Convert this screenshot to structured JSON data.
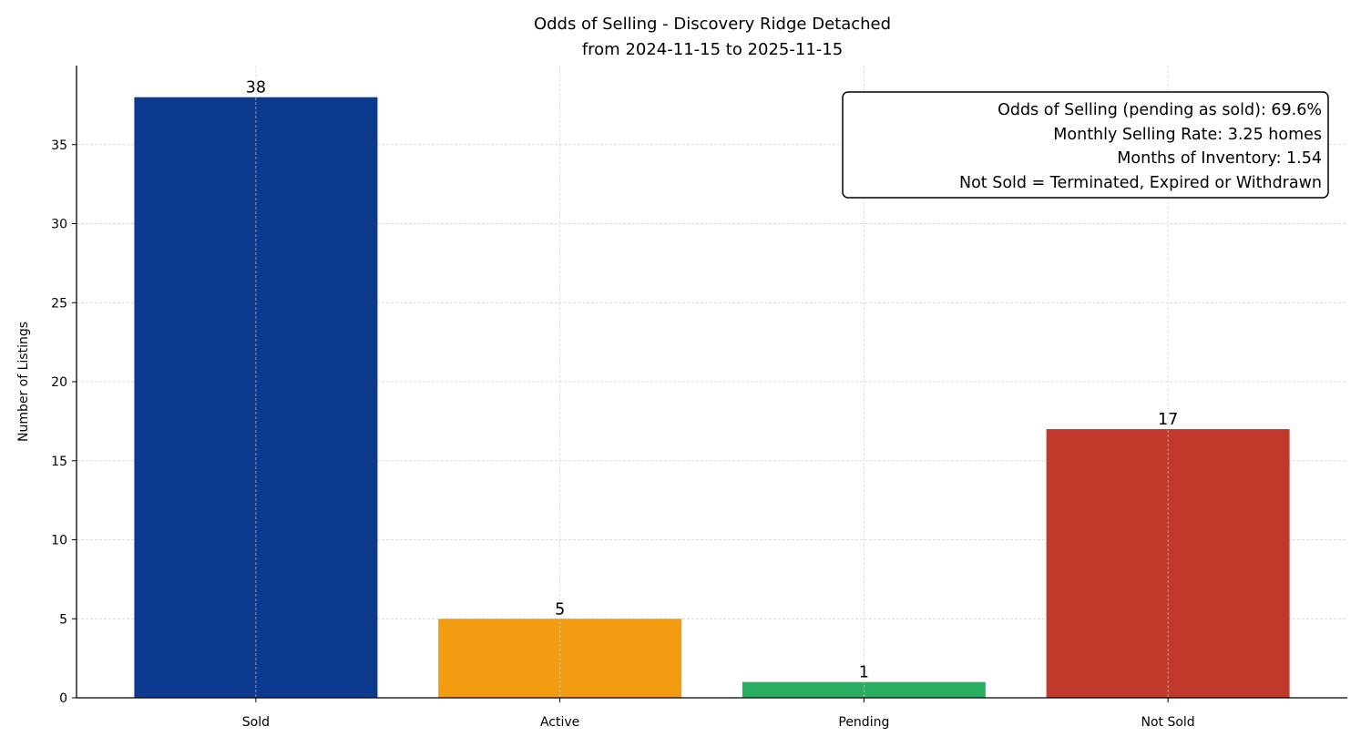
{
  "chart_data": {
    "type": "bar",
    "title": "Odds of Selling - Discovery Ridge Detached",
    "subtitle": "from 2024-11-15 to 2025-11-15",
    "xlabel": "",
    "ylabel": "Number of Listings",
    "categories": [
      "Sold",
      "Active",
      "Pending",
      "Not Sold"
    ],
    "values": [
      38,
      5,
      1,
      17
    ],
    "data_labels": [
      "38",
      "5",
      "1",
      "17"
    ],
    "colors": [
      "#0b3a8e",
      "#f39c12",
      "#27ae60",
      "#c0392b"
    ],
    "ylim": [
      0,
      40
    ],
    "yticks": [
      0,
      5,
      10,
      15,
      20,
      25,
      30,
      35
    ],
    "ytick_labels": [
      "0",
      "5",
      "10",
      "15",
      "20",
      "25",
      "30",
      "35"
    ],
    "grid": true,
    "annotation": [
      "Odds of Selling (pending as sold): 69.6%",
      "Monthly Selling Rate: 3.25 homes",
      "Months of Inventory: 1.54",
      "Not Sold = Terminated, Expired or Withdrawn"
    ],
    "annotation_placement": "top-right"
  }
}
